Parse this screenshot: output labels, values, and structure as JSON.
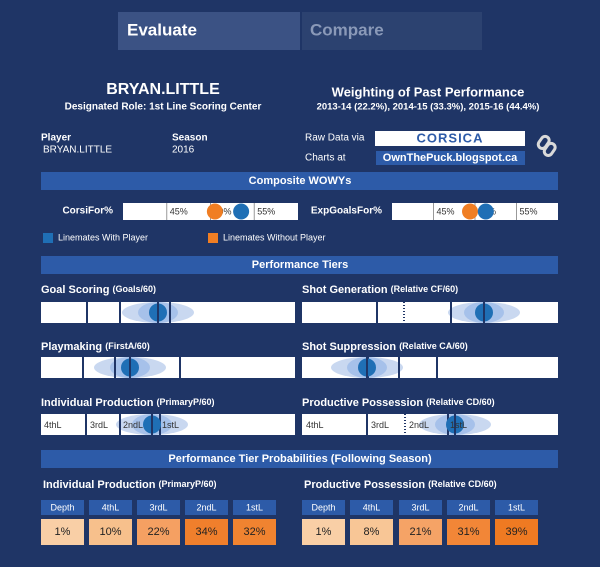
{
  "tabs": [
    "Evaluate",
    "Compare"
  ],
  "player_header": {
    "name": "BRYAN.LITTLE",
    "role": "Designated Role: 1st Line Scoring Center"
  },
  "weighting": {
    "title": "Weighting of Past Performance",
    "detail": "2013-14 (22.2%), 2014-15 (33.3%), 2015-16 (44.4%)"
  },
  "info": {
    "player_label": "Player",
    "player": "BRYAN.LITTLE",
    "season_label": "Season",
    "season": "2016",
    "raw_data": "Raw Data via",
    "corsica": "CORSICA",
    "charts_at": "Charts at",
    "site": "OwnThePuck.blogspot.ca"
  },
  "composite": {
    "title": "Composite WOWYs",
    "charts": [
      {
        "label": "CorsiFor%",
        "xlim": [
          40,
          60
        ],
        "xticks": [
          {
            "value": 45,
            "label": "45%"
          },
          {
            "value": 50,
            "label": "50%"
          },
          {
            "value": 55,
            "label": "55%"
          }
        ],
        "with": 53.5,
        "without": 50.5
      },
      {
        "label": "ExpGoalsFor%",
        "xlim": [
          40,
          60
        ],
        "xticks": [
          {
            "value": 45,
            "label": "45%"
          },
          {
            "value": 50,
            "label": "50%"
          },
          {
            "value": 55,
            "label": "55%"
          }
        ],
        "with": 51.3,
        "without": 49.4
      }
    ],
    "legend": [
      {
        "name": "Linemates With Player",
        "color": "#1f6fb5"
      },
      {
        "name": "Linemates Without Player",
        "color": "#f07e23"
      }
    ]
  },
  "tiers": {
    "title": "Performance Tiers",
    "panels": [
      {
        "title": "Goal Scoring",
        "unit": "(Goals/60)"
      },
      {
        "title": "Shot Generation",
        "unit": "(Relative CF/60)"
      },
      {
        "title": "Playmaking",
        "unit": "(FirstA/60)"
      },
      {
        "title": "Shot Suppression",
        "unit": "(Relative CA/60)"
      },
      {
        "title": "Individual Production",
        "unit": "(PrimaryP/60)",
        "tier_labels": [
          "4thL",
          "3rdL",
          "2ndL",
          "1stL"
        ]
      },
      {
        "title": "Productive Possession",
        "unit": "(Relative CD/60)",
        "tier_labels": [
          "4thL",
          "3rdL",
          "2ndL",
          "1stL"
        ]
      }
    ]
  },
  "probabilities": {
    "title": "Performance Tier Probabilities (Following Season)",
    "tables": [
      {
        "title": "Individual Production",
        "unit": "(PrimaryP/60)",
        "headers": [
          "Depth",
          "4thL",
          "3rdL",
          "2ndL",
          "1stL"
        ],
        "values": [
          "1%",
          "10%",
          "22%",
          "34%",
          "32%"
        ],
        "colors": [
          "#f9cfa6",
          "#f7c08c",
          "#f5a062",
          "#f07f2c",
          "#f08330"
        ]
      },
      {
        "title": "Productive Possession",
        "unit": "(Relative CD/60)",
        "headers": [
          "Depth",
          "4thL",
          "3rdL",
          "2ndL",
          "1stL"
        ],
        "values": [
          "1%",
          "8%",
          "21%",
          "31%",
          "39%"
        ],
        "colors": [
          "#f9cfa6",
          "#f8c696",
          "#f5a366",
          "#f28637",
          "#ef7a22"
        ]
      }
    ]
  }
}
